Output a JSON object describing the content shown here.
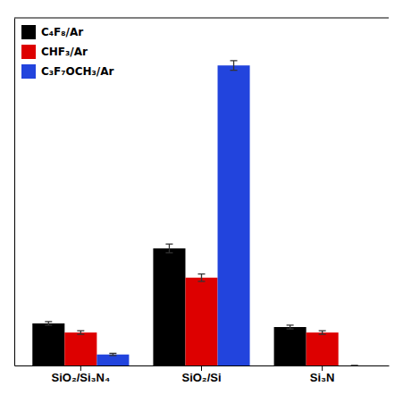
{
  "chart_data": {
    "type": "bar",
    "categories": [
      "SiO₂/Si₃N₄",
      "SiO₂/Si",
      "Si₃N"
    ],
    "series": [
      {
        "name": "C₄F₈/Ar",
        "color": "#000000",
        "values": [
          1.15,
          3.2,
          1.05
        ],
        "errors": [
          0.05,
          0.12,
          0.05
        ]
      },
      {
        "name": "CHF₃/Ar",
        "color": "#dd0000",
        "values": [
          0.9,
          2.4,
          0.9
        ],
        "errors": [
          0.05,
          0.1,
          0.05
        ]
      },
      {
        "name": "C₃F₇OCH₃/Ar",
        "color": "#2244dd",
        "values": [
          0.3,
          8.2,
          0.0
        ],
        "errors": [
          0.03,
          0.13,
          0.0
        ]
      }
    ],
    "ylim": [
      0,
      9.5
    ],
    "yticks": [],
    "legend": "upper left",
    "tick_labels": "x"
  }
}
